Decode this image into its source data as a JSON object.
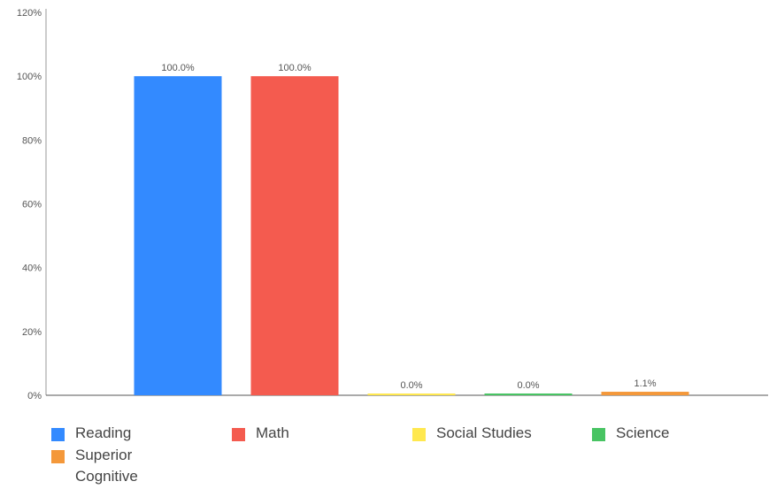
{
  "chart_data": {
    "type": "bar",
    "categories": [
      "Reading",
      "Math",
      "Social Studies",
      "Science",
      "Superior Cognitive"
    ],
    "values": [
      100.0,
      100.0,
      0.0,
      0.0,
      1.1
    ],
    "data_labels": [
      "100.0%",
      "100.0%",
      "0.0%",
      "0.0%",
      "1.1%"
    ],
    "colors": [
      "#338aff",
      "#f45b4f",
      "#ffe84f",
      "#48c463",
      "#f4983a"
    ],
    "ylim": [
      0,
      120
    ],
    "yticks": [
      "0%",
      "20%",
      "40%",
      "60%",
      "80%",
      "100%",
      "120%"
    ],
    "ytick_values": [
      0,
      20,
      40,
      60,
      80,
      100,
      120
    ],
    "grid": false,
    "legend_position": "bottom"
  },
  "legend": [
    {
      "label": "Reading",
      "color": "#338aff"
    },
    {
      "label": "Math",
      "color": "#f45b4f"
    },
    {
      "label": "Social Studies",
      "color": "#ffe84f"
    },
    {
      "label": "Science",
      "color": "#48c463"
    },
    {
      "label": "Superior Cognitive",
      "color": "#f4983a"
    }
  ]
}
